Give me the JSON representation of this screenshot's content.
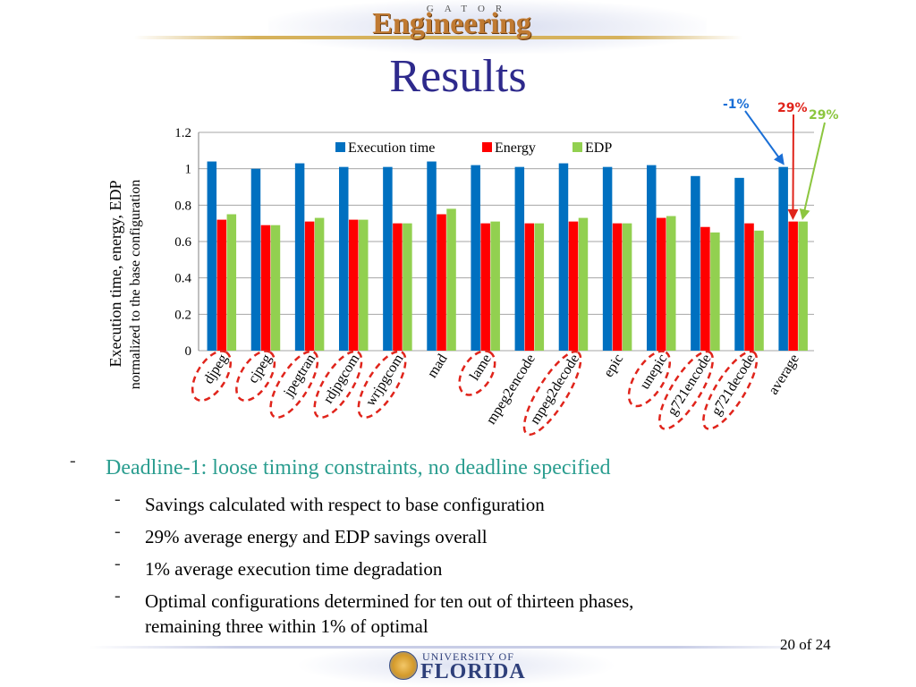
{
  "header": {
    "logo_sub": "GATOR",
    "logo_main": "Engineering",
    "title": "Results"
  },
  "chart_data": {
    "type": "bar",
    "ylabel_line1": "Execution time, energy, EDP",
    "ylabel_line2": "normalized to the base configuration",
    "ylim": [
      0,
      1.2
    ],
    "yticks": [
      "0",
      "0.2",
      "0.4",
      "0.6",
      "0.8",
      "1",
      "1.2"
    ],
    "grid": true,
    "legend_position": "top",
    "categories": [
      "djpeg",
      "cjpeg",
      "jpegtran",
      "rdjpgcom",
      "wrjpgcom",
      "mad",
      "lame",
      "mpeg2encode",
      "mpeg2decode",
      "epic",
      "unepic",
      "g721encode",
      "g721decode",
      "average"
    ],
    "series": [
      {
        "name": "Execution time",
        "color": "#0070c0",
        "values": [
          1.04,
          1.0,
          1.03,
          1.01,
          1.01,
          1.04,
          1.02,
          1.01,
          1.03,
          1.01,
          1.02,
          0.96,
          0.95,
          1.01
        ]
      },
      {
        "name": "Energy",
        "color": "#ff0000",
        "values": [
          0.72,
          0.69,
          0.71,
          0.72,
          0.7,
          0.75,
          0.7,
          0.7,
          0.71,
          0.7,
          0.73,
          0.68,
          0.7,
          0.71
        ]
      },
      {
        "name": "EDP",
        "color": "#92d050",
        "values": [
          0.75,
          0.69,
          0.73,
          0.72,
          0.7,
          0.78,
          0.71,
          0.7,
          0.73,
          0.7,
          0.74,
          0.65,
          0.66,
          0.71
        ]
      }
    ],
    "circled_categories": [
      "djpeg",
      "cjpeg",
      "jpegtran",
      "rdjpgcom",
      "wrjpgcom",
      "lame",
      "mpeg2decode",
      "unepic",
      "g721encode",
      "g721decode"
    ],
    "annotations": [
      {
        "text": "-1%",
        "color": "#1a6fd6"
      },
      {
        "text": "29%",
        "color": "#e0241b"
      },
      {
        "text": "29%",
        "color": "#8cc63f"
      }
    ]
  },
  "bullets": {
    "main": "Deadline-1: loose timing constraints, no deadline specified",
    "sub": [
      "Savings calculated with respect to base configuration",
      "29% average energy and EDP savings overall",
      "1% average execution time degradation",
      "Optimal configurations determined for ten out of thirteen phases,",
      "remaining three within 1% of optimal"
    ]
  },
  "footer": {
    "university_small": "UNIVERSITY OF",
    "university_big": "FLORIDA",
    "page": "20 of 24"
  }
}
